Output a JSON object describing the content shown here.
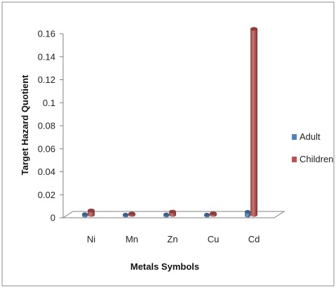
{
  "chart_data": {
    "type": "bar",
    "title": "",
    "xlabel": "Metals Symbols",
    "ylabel": "Target Hazard Quotient",
    "categories": [
      "Ni",
      "Mn",
      "Zn",
      "Cu",
      "Cd"
    ],
    "series": [
      {
        "name": "Adult",
        "color": "#4F81BD",
        "values": [
          0.0013,
          0.0006,
          0.0011,
          0.0006,
          0.0034
        ]
      },
      {
        "name": "Children",
        "color": "#C0504D",
        "values": [
          0.0039,
          0.0012,
          0.0029,
          0.0014,
          0.1618
        ]
      }
    ],
    "ylim": [
      0,
      0.16
    ],
    "yticks": [
      "0",
      "0.02",
      "0.04",
      "0.06",
      "0.08",
      "0.1",
      "0.12",
      "0.14",
      "0.16"
    ],
    "grid": false,
    "legend_position": "right",
    "bar_style": "3d-cylinder"
  }
}
